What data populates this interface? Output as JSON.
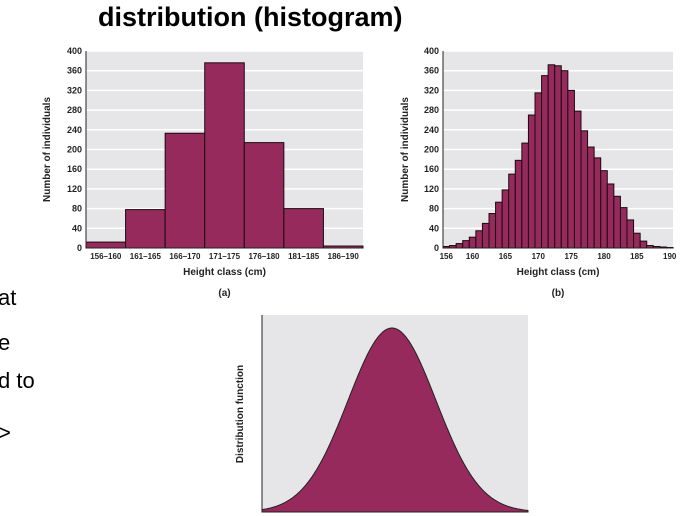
{
  "slide": {
    "title": "distribution (histogram)",
    "left_fragments": [
      "at",
      "e",
      "d to",
      ">"
    ]
  },
  "colors": {
    "bar": "#962A5C",
    "plot_bg": "#E6E6E8",
    "grid": "#FFFFFF",
    "edge": "#1A0A10"
  },
  "chart_data": [
    {
      "type": "bar",
      "panel": "(a)",
      "xlabel": "Height class (cm)",
      "ylabel": "Number of individuals",
      "categories": [
        "156–160",
        "161–165",
        "166–170",
        "171–175",
        "176–180",
        "181–185",
        "186–190"
      ],
      "values": [
        12,
        78,
        233,
        376,
        214,
        80,
        4
      ],
      "ylim": [
        0,
        400
      ],
      "yticks": [
        0,
        40,
        80,
        120,
        160,
        200,
        240,
        280,
        320,
        360,
        400
      ],
      "grid": true
    },
    {
      "type": "bar",
      "panel": "(b)",
      "xlabel": "Height class (cm)",
      "ylabel": "Number of individuals",
      "x": [
        156,
        157,
        158,
        159,
        160,
        161,
        162,
        163,
        164,
        165,
        166,
        167,
        168,
        169,
        170,
        171,
        172,
        173,
        174,
        175,
        176,
        177,
        178,
        179,
        180,
        181,
        182,
        183,
        184,
        185,
        186,
        187,
        188,
        189,
        190
      ],
      "values": [
        3,
        5,
        9,
        15,
        22,
        35,
        50,
        70,
        93,
        118,
        150,
        178,
        213,
        270,
        315,
        350,
        372,
        370,
        360,
        320,
        278,
        238,
        205,
        183,
        157,
        130,
        105,
        82,
        57,
        30,
        14,
        5,
        3,
        2,
        1
      ],
      "xticks": [
        156,
        160,
        165,
        170,
        175,
        180,
        185,
        190
      ],
      "ylim": [
        0,
        400
      ],
      "yticks": [
        0,
        40,
        80,
        120,
        160,
        200,
        240,
        280,
        320,
        360,
        400
      ],
      "grid": true
    },
    {
      "type": "area",
      "ylabel": "Distribution function",
      "shape": "normal curve"
    }
  ]
}
